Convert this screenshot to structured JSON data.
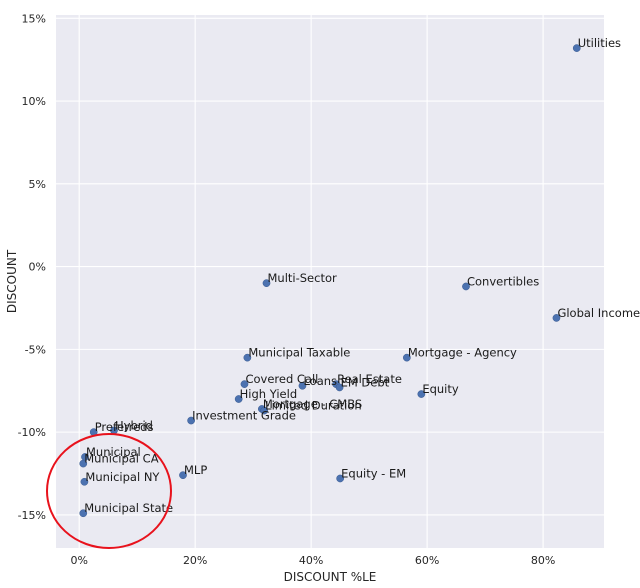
{
  "chart_data": {
    "type": "scatter",
    "title": "",
    "xlabel": "DISCOUNT %LE",
    "ylabel": "DISCOUNT",
    "xlim": [
      -0.04,
      0.905
    ],
    "ylim": [
      -0.17,
      0.152
    ],
    "x_ticks": [
      0,
      0.2,
      0.4,
      0.6,
      0.8
    ],
    "x_tick_labels": [
      "0%",
      "20%",
      "40%",
      "60%",
      "80%"
    ],
    "y_ticks": [
      -0.15,
      -0.1,
      -0.05,
      0,
      0.05,
      0.1,
      0.15
    ],
    "y_tick_labels": [
      "-15%",
      "-10%",
      "-5%",
      "0%",
      "5%",
      "10%",
      "15%"
    ],
    "grid": true,
    "background": "#eaeaf2",
    "point_color": "#4c72b0",
    "annotation": {
      "shape": "ellipse",
      "color": "#e8121c"
    },
    "points": [
      {
        "label": "Utilities",
        "x": 0.858,
        "y": 0.132
      },
      {
        "label": "Multi-Sector",
        "x": 0.323,
        "y": -0.01
      },
      {
        "label": "Convertibles",
        "x": 0.667,
        "y": -0.012
      },
      {
        "label": "Global Income",
        "x": 0.823,
        "y": -0.031
      },
      {
        "label": "Municipal Taxable",
        "x": 0.29,
        "y": -0.055
      },
      {
        "label": "Mortgage - Agency",
        "x": 0.565,
        "y": -0.055
      },
      {
        "label": "Covered Call",
        "x": 0.285,
        "y": -0.071
      },
      {
        "label": "Loans",
        "x": 0.385,
        "y": -0.072
      },
      {
        "label": "Real Estate",
        "x": 0.443,
        "y": -0.071
      },
      {
        "label": "EM Debt",
        "x": 0.449,
        "y": -0.073
      },
      {
        "label": "Equity",
        "x": 0.59,
        "y": -0.077
      },
      {
        "label": "High Yield",
        "x": 0.275,
        "y": -0.08
      },
      {
        "label": "Mortgage - CMBS",
        "x": 0.315,
        "y": -0.086
      },
      {
        "label": "Limited Duration",
        "x": 0.319,
        "y": -0.087
      },
      {
        "label": "Investment Grade",
        "x": 0.193,
        "y": -0.093
      },
      {
        "label": "Preferreds",
        "x": 0.025,
        "y": -0.1
      },
      {
        "label": "Hybrid",
        "x": 0.06,
        "y": -0.099
      },
      {
        "label": "Municipal",
        "x": 0.01,
        "y": -0.115
      },
      {
        "label": "Municipal CA",
        "x": 0.007,
        "y": -0.119
      },
      {
        "label": "Municipal NY",
        "x": 0.009,
        "y": -0.13
      },
      {
        "label": "MLP",
        "x": 0.179,
        "y": -0.126
      },
      {
        "label": "Equity - EM",
        "x": 0.45,
        "y": -0.128
      },
      {
        "label": "Municipal State",
        "x": 0.007,
        "y": -0.149
      }
    ]
  }
}
